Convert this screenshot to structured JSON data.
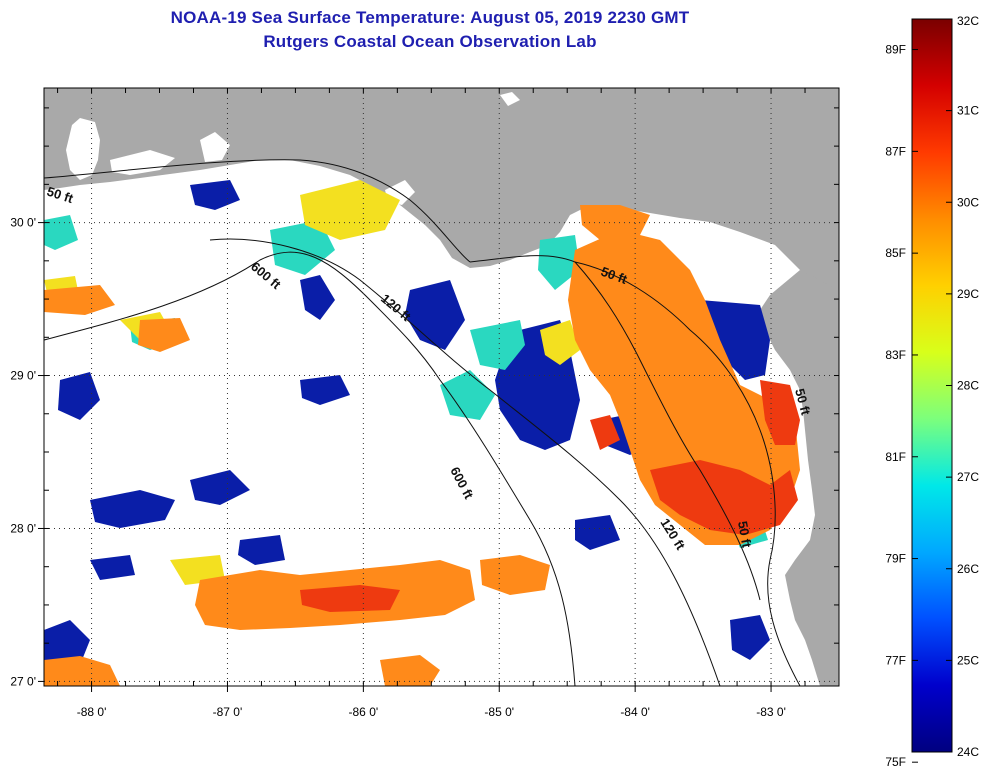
{
  "title": {
    "line1": "NOAA-19 Sea Surface Temperature:  August 05, 2019 2230 GMT",
    "line2": "Rutgers Coastal Ocean Observation Lab"
  },
  "colors": {
    "land": "#a9a9a9",
    "no_data": "#ffffff",
    "frame": "#000000",
    "title": "#1f1fb0"
  },
  "map": {
    "lon_range": [
      -88.35,
      -82.5
    ],
    "lat_range": [
      26.97,
      30.88
    ],
    "x_ticks": [
      {
        "value": -88,
        "label": "-88 0'"
      },
      {
        "value": -87,
        "label": "-87 0'"
      },
      {
        "value": -86,
        "label": "-86 0'"
      },
      {
        "value": -85,
        "label": "-85 0'"
      },
      {
        "value": -84,
        "label": "-84 0'"
      },
      {
        "value": -83,
        "label": "-83 0'"
      }
    ],
    "y_ticks": [
      {
        "value": 30,
        "label": "30 0'"
      },
      {
        "value": 29,
        "label": "29 0'"
      },
      {
        "value": 28,
        "label": "28 0'"
      },
      {
        "value": 27,
        "label": "27 0'"
      }
    ],
    "contour_labels": [
      {
        "text": "50 ft",
        "icon": "depth-50ft"
      },
      {
        "text": "600 ft",
        "icon": "depth-600ft"
      },
      {
        "text": "120 ft",
        "icon": "depth-120ft"
      },
      {
        "text": "50 ft",
        "icon": "depth-50ft"
      },
      {
        "text": "600 ft",
        "icon": "depth-600ft"
      },
      {
        "text": "120 ft",
        "icon": "depth-120ft"
      },
      {
        "text": "50 ft",
        "icon": "depth-50ft"
      },
      {
        "text": "50 ft",
        "icon": "depth-50ft"
      }
    ]
  },
  "colorbar": {
    "min_c": 24,
    "max_c": 32,
    "celsius_labels": [
      {
        "value": 32,
        "label": "32C"
      },
      {
        "value": 31,
        "label": "31C"
      },
      {
        "value": 30,
        "label": "30C"
      },
      {
        "value": 29,
        "label": "29C"
      },
      {
        "value": 28,
        "label": "28C"
      },
      {
        "value": 27,
        "label": "27C"
      },
      {
        "value": 26,
        "label": "26C"
      },
      {
        "value": 25,
        "label": "25C"
      },
      {
        "value": 24,
        "label": "24C"
      }
    ],
    "fahrenheit_labels": [
      {
        "value": 89,
        "label": "89F"
      },
      {
        "value": 87,
        "label": "87F"
      },
      {
        "value": 85,
        "label": "85F"
      },
      {
        "value": 83,
        "label": "83F"
      },
      {
        "value": 81,
        "label": "81F"
      },
      {
        "value": 79,
        "label": "79F"
      },
      {
        "value": 77,
        "label": "77F"
      },
      {
        "value": 75,
        "label": "75F"
      }
    ],
    "gradient_colors": [
      "#7a0000",
      "#d40000",
      "#ff3a00",
      "#ff8c00",
      "#ffd000",
      "#d8ff1a",
      "#7cff7c",
      "#00e8e8",
      "#00a8ff",
      "#0050ff",
      "#0000cc",
      "#000080"
    ]
  }
}
